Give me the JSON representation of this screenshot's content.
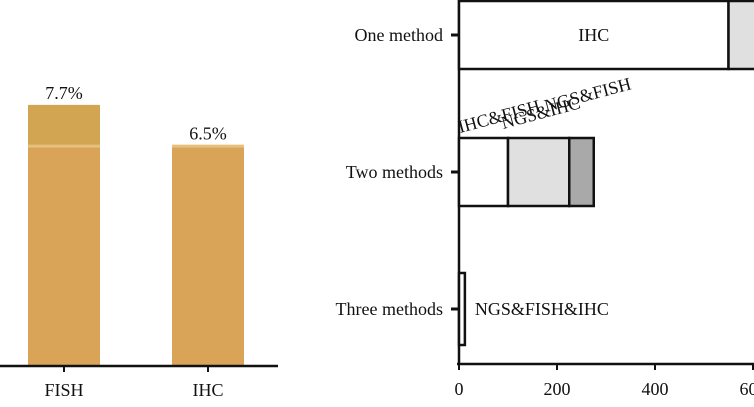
{
  "colors": {
    "bar_fill": "#d9a458",
    "bar_top": "#d1a552",
    "bar_band": "#e6c07e",
    "axis": "#111111",
    "seg_white": "#ffffff",
    "seg_light": "#e0e0e0",
    "seg_mid": "#a9a9a9"
  },
  "chart_data": [
    {
      "type": "bar",
      "categories": [
        "FISH",
        "IHC"
      ],
      "values": [
        7.7,
        6.5
      ],
      "data_labels": [
        "7.7%",
        "6.5%"
      ],
      "ylim": [
        0,
        10.5
      ],
      "grid": false,
      "legend": "none"
    },
    {
      "type": "bar",
      "orientation": "horizontal",
      "stacked": true,
      "categories": [
        "One method",
        "Two methods",
        "Three methods"
      ],
      "rows": [
        {
          "category": "One method",
          "segments": [
            {
              "label": "IHC",
              "value": 550,
              "color": "#ffffff"
            },
            {
              "label": "",
              "value": 250,
              "color": "#e0e0e0"
            }
          ]
        },
        {
          "category": "Two methods",
          "segments": [
            {
              "label": "IHC&FISH",
              "value": 100,
              "color": "#ffffff"
            },
            {
              "label": "NGS&IHC",
              "value": 125,
              "color": "#e0e0e0"
            },
            {
              "label": "NGS&FISH",
              "value": 50,
              "color": "#a9a9a9"
            }
          ]
        },
        {
          "category": "Three methods",
          "segments": [
            {
              "label": "NGS&FISH&IHC",
              "value": 12,
              "color": "#ffffff"
            }
          ]
        }
      ],
      "x_ticks": [
        "0",
        "200",
        "400",
        "600"
      ],
      "tick_values": [
        0,
        200,
        400,
        600
      ],
      "xlim": [
        0,
        650
      ],
      "grid": false,
      "legend": "none"
    }
  ]
}
